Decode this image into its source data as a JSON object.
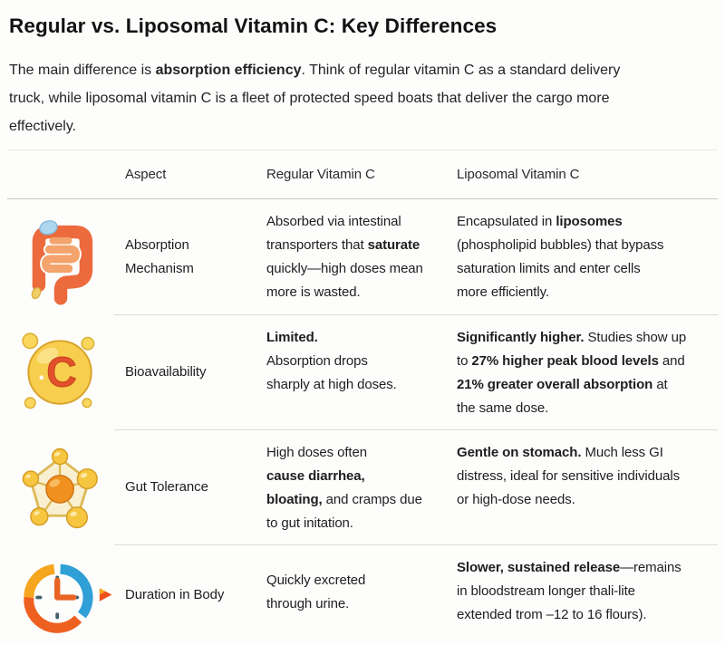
{
  "page": {
    "title": "Regular vs. Liposomal Vitamin C: Key Differences",
    "intro": [
      {
        "t": "The main difference is "
      },
      {
        "t": "absorption efficiency",
        "b": 1
      },
      {
        "t": ". Think of regular vitamin C as a standard delivery",
        "br": 1
      },
      {
        "t": "truck, while liposomal vitamin C is a fleet of protected speed boats that deliver the cargo more",
        "br": 1
      },
      {
        "t": "effectively."
      }
    ]
  },
  "table": {
    "headers": [
      "Aspect",
      "Regular Vitamin C",
      "Liposomal Vitamin C"
    ],
    "rows": [
      {
        "icon": "intestine-icon",
        "aspect": "Absorption Mechanism",
        "regular": [
          {
            "t": "Absorbed via intestinal",
            "br": 1
          },
          {
            "t": "transporters that "
          },
          {
            "t": "saturate",
            "b": 1,
            "br": 1
          },
          {
            "t": "quickly—high doses mean",
            "br": 1
          },
          {
            "t": "more is wasted."
          }
        ],
        "liposomal": [
          {
            "t": "Encapsulated in "
          },
          {
            "t": "liposomes",
            "b": 1,
            "br": 1
          },
          {
            "t": "(phospholipid bubbles) that bypass",
            "br": 1
          },
          {
            "t": "saturation limits and enter cells",
            "br": 1
          },
          {
            "t": "more efficiently."
          }
        ]
      },
      {
        "icon": "vitamin-c-icon",
        "aspect": "Bioavailability",
        "regular": [
          {
            "t": "Limited.",
            "b": 1,
            "br": 1
          },
          {
            "t": "Absorption drops",
            "br": 1
          },
          {
            "t": "sharply at high doses."
          }
        ],
        "liposomal": [
          {
            "t": "Significantly higher.",
            "b": 1
          },
          {
            "t": " Studies show up",
            "br": 1
          },
          {
            "t": "to "
          },
          {
            "t": "27% higher peak blood levels",
            "b": 1
          },
          {
            "t": " and",
            "br": 1
          },
          {
            "t": "21% greater overall absorption",
            "b": 1
          },
          {
            "t": " at",
            "br": 1
          },
          {
            "t": "the same dose."
          }
        ]
      },
      {
        "icon": "molecule-icon",
        "aspect": "Gut Tolerance",
        "regular": [
          {
            "t": "High doses often",
            "br": 1
          },
          {
            "t": "cause diarrhea,",
            "b": 1,
            "br": 1
          },
          {
            "t": "bloating,",
            "b": 1
          },
          {
            "t": " and cramps due",
            "br": 1
          },
          {
            "t": "to gut initation."
          }
        ],
        "liposomal": [
          {
            "t": "Gentle on stomach.",
            "b": 1
          },
          {
            "t": " Much less GI",
            "br": 1
          },
          {
            "t": "distress, ideal for sensitive individuals",
            "br": 1
          },
          {
            "t": "or high-dose needs."
          }
        ]
      },
      {
        "icon": "clock-icon",
        "aspect": "Duration in Body",
        "regular": [
          {
            "t": "Quickly excreted",
            "br": 1
          },
          {
            "t": "through urine."
          }
        ],
        "liposomal": [
          {
            "t": "Slower, sustained release",
            "b": 1
          },
          {
            "t": "—remains",
            "br": 1
          },
          {
            "t": "in bloodstream longer thali-lite",
            "br": 1
          },
          {
            "t": "extended trom –12 to 16 flours)."
          }
        ]
      }
    ]
  },
  "colors": {
    "intestine_orange": "#ec6a3c",
    "vitamin_gold": "#f7ce4d",
    "vitamin_c_letter": "#e2512b",
    "molecule_orange": "#f0911f",
    "clock_blue": "#2f9fd6",
    "clock_orange": "#ee6020",
    "border_gray": "#dbdbd9",
    "text": "#1e1e20"
  }
}
